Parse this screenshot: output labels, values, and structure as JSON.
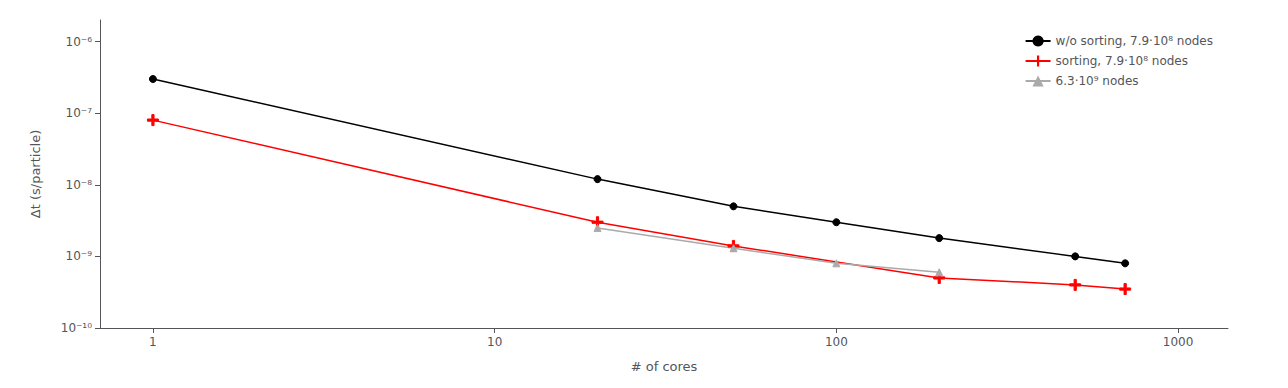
{
  "chart_data": {
    "type": "line",
    "xlabel": "# of cores",
    "ylabel": "Δt (s/particle)",
    "log": true,
    "grid": false,
    "legend": "upper right",
    "xlim": [
      0.7,
      1400
    ],
    "xticks": [
      1,
      10,
      100,
      1000
    ],
    "ylim": [
      1e-10,
      2e-06
    ],
    "yticks": [
      {
        "value": 1e-10,
        "label": "10⁻¹⁰"
      },
      {
        "value": 1e-09,
        "label": "10⁻⁹"
      },
      {
        "value": 1e-08,
        "label": "10⁻⁸"
      },
      {
        "value": 1e-07,
        "label": "10⁻⁷"
      },
      {
        "value": 1e-06,
        "label": "10⁻⁶"
      }
    ],
    "series": [
      {
        "name": "w/o sorting, 7.9·10⁸ nodes",
        "color": "black",
        "marker": "circle",
        "x": [
          1,
          20,
          50,
          100,
          200,
          500,
          700
        ],
        "values": [
          3e-07,
          1.2e-08,
          5e-09,
          3e-09,
          1.8e-09,
          1e-09,
          8e-10
        ]
      },
      {
        "name": "sorting, 7.9·10⁸ nodes",
        "color": "red",
        "marker": "plus",
        "x": [
          1,
          20,
          50,
          200,
          500,
          700
        ],
        "values": [
          8e-08,
          3e-09,
          1.4e-09,
          5e-10,
          4e-10,
          3.5e-10
        ]
      },
      {
        "name": "6.3·10⁹ nodes",
        "color": "#aaaaaa",
        "marker": "triangle",
        "x": [
          20,
          50,
          100,
          200
        ],
        "values": [
          2.5e-09,
          1.3e-09,
          8e-10,
          6e-10
        ]
      }
    ]
  }
}
